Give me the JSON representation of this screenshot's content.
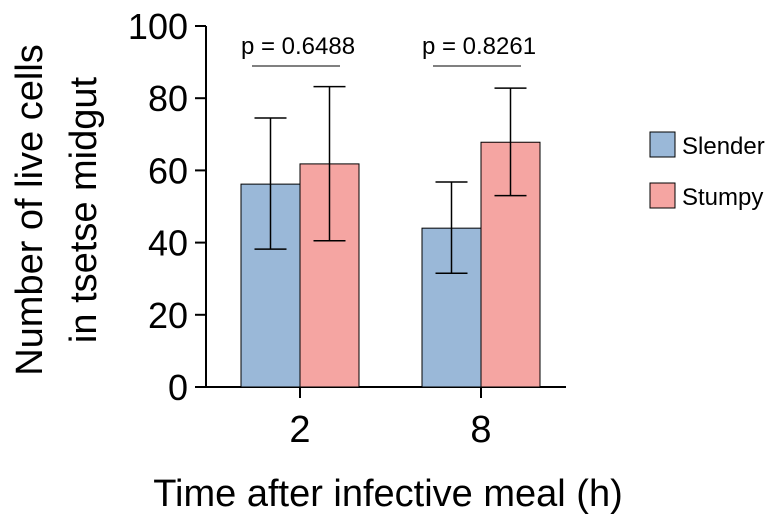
{
  "chart_data": {
    "type": "bar",
    "title": "",
    "xlabel": "Time after infective meal (h)",
    "ylabel_lines": [
      "Number of live cells",
      "in tsetse midgut"
    ],
    "categories": [
      "2",
      "8"
    ],
    "ylim": [
      0,
      100
    ],
    "yticks": [
      "0",
      "20",
      "40",
      "60",
      "80",
      "100"
    ],
    "series": [
      {
        "name": "Slender",
        "color": "#9ab8d8",
        "values": [
          56.2,
          44.0
        ],
        "err_low": [
          38.2,
          31.5
        ],
        "err_high": [
          74.5,
          56.8
        ]
      },
      {
        "name": "Stumpy",
        "color": "#f5a5a2",
        "values": [
          61.8,
          67.8
        ],
        "err_low": [
          40.5,
          53.0
        ],
        "err_high": [
          83.2,
          82.8
        ]
      }
    ],
    "annotations": [
      "p = 0.6488",
      "p = 0.8261"
    ],
    "legend_position": "right",
    "grid": false
  }
}
